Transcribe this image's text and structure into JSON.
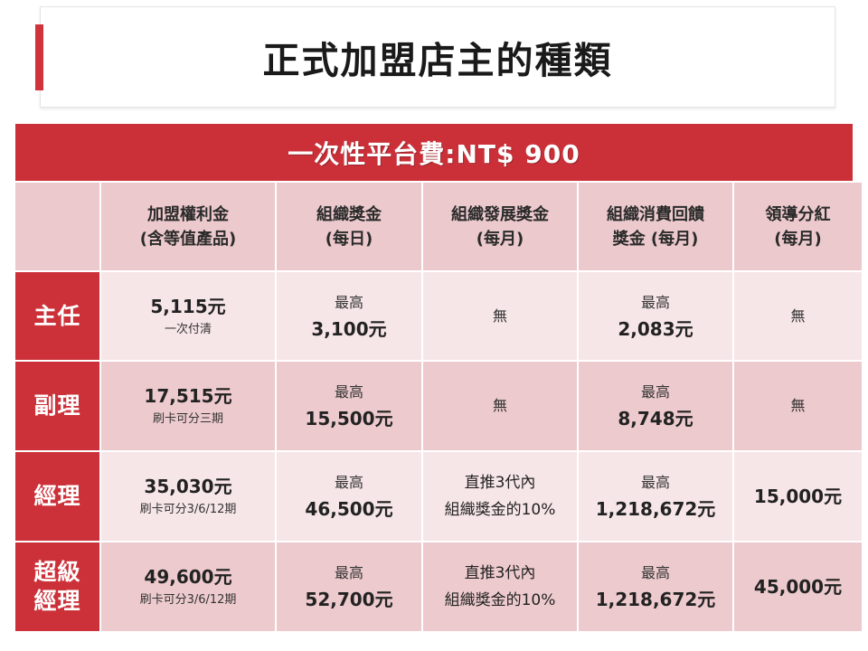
{
  "title": "正式加盟店主的種類",
  "fee_bar": "一次性平台費:NT$ 900",
  "headers": [
    {
      "line1": "加盟權利金",
      "line2": "(含等值產品)"
    },
    {
      "line1": "組織獎金",
      "line2": "(每日)"
    },
    {
      "line1": "組織發展獎金",
      "line2": "(每月)"
    },
    {
      "line1": "組織消費回饋",
      "line2": "獎金 (每月)"
    },
    {
      "line1": "領導分紅",
      "line2": "(每月)"
    }
  ],
  "rows": [
    {
      "label": "主任",
      "fee": {
        "amount": "5,115元",
        "note": "一次付清"
      },
      "org_bonus": {
        "prefix": "最高",
        "amount": "3,100元"
      },
      "dev_bonus": {
        "line1": "無",
        "line2": ""
      },
      "consume_bonus": {
        "prefix": "最高",
        "amount": "2,083元"
      },
      "leader": "無"
    },
    {
      "label": "副理",
      "fee": {
        "amount": "17,515元",
        "note": "刷卡可分三期"
      },
      "org_bonus": {
        "prefix": "最高",
        "amount": "15,500元"
      },
      "dev_bonus": {
        "line1": "無",
        "line2": ""
      },
      "consume_bonus": {
        "prefix": "最高",
        "amount": "8,748元"
      },
      "leader": "無"
    },
    {
      "label": "經理",
      "fee": {
        "amount": "35,030元",
        "note": "刷卡可分3/6/12期"
      },
      "org_bonus": {
        "prefix": "最高",
        "amount": "46,500元"
      },
      "dev_bonus": {
        "line1": "直推3代內",
        "line2": "組織獎金的10%"
      },
      "consume_bonus": {
        "prefix": "最高",
        "amount": "1,218,672元"
      },
      "leader": "15,000元"
    },
    {
      "label": "超級\n經理",
      "label_lines": [
        "超級",
        "經理"
      ],
      "fee": {
        "amount": "49,600元",
        "note": "刷卡可分3/6/12期"
      },
      "org_bonus": {
        "prefix": "最高",
        "amount": "52,700元"
      },
      "dev_bonus": {
        "line1": "直推3代內",
        "line2": "組織獎金的10%"
      },
      "consume_bonus": {
        "prefix": "最高",
        "amount": "1,218,672元"
      },
      "leader": "45,000元"
    }
  ]
}
